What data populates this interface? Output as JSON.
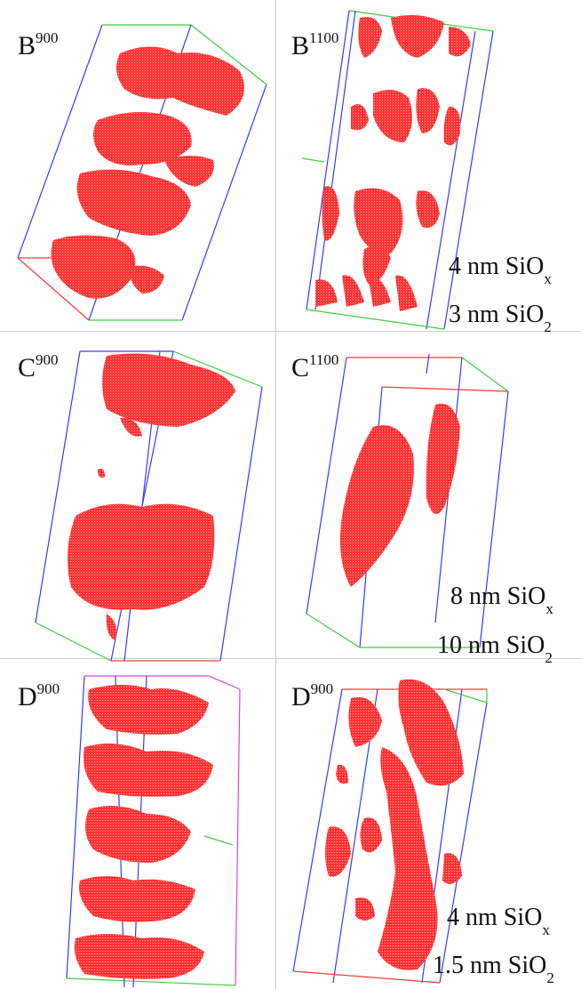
{
  "figure": {
    "panels": [
      {
        "id": "b900",
        "label_main": "B",
        "label_sup": "900",
        "annotations": []
      },
      {
        "id": "b1100",
        "label_main": "B",
        "label_sup": "1100",
        "annotations": [
          {
            "prefix": "4 nm SiO",
            "sub": "x"
          },
          {
            "prefix": "3 nm SiO",
            "sub": "2"
          }
        ]
      },
      {
        "id": "c900",
        "label_main": "C",
        "label_sup": "900",
        "annotations": []
      },
      {
        "id": "c1100",
        "label_main": "C",
        "label_sup": "1100",
        "annotations": [
          {
            "prefix": "8 nm SiO",
            "sub": "x"
          },
          {
            "prefix": "10 nm SiO",
            "sub": "2"
          }
        ]
      },
      {
        "id": "d900a",
        "label_main": "D",
        "label_sup": "900",
        "annotations": []
      },
      {
        "id": "d900b",
        "label_main": "D",
        "label_sup": "900",
        "annotations": [
          {
            "prefix": "4 nm SiO",
            "sub": "x"
          },
          {
            "prefix": "1.5 nm SiO",
            "sub": "2"
          }
        ]
      }
    ],
    "colors": {
      "cluster": "#ff2a2a",
      "box_edge_blue": "#3a3aff",
      "box_edge_green": "#3ccf3c",
      "box_edge_red": "#ff3a3a",
      "box_edge_magenta": "#e040e0"
    }
  }
}
